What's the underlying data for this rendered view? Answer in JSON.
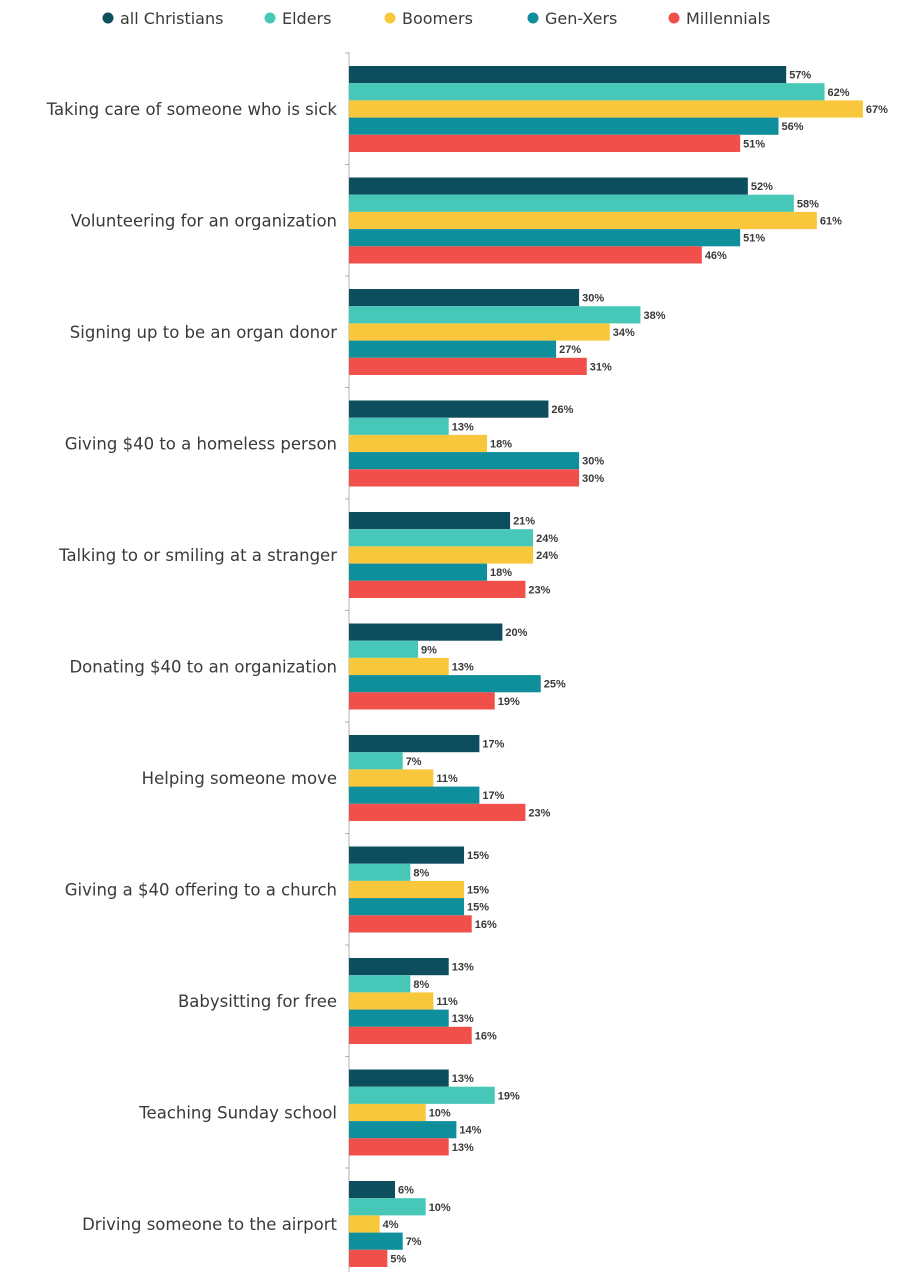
{
  "chart_data": {
    "type": "bar",
    "orientation": "horizontal",
    "categories": [
      "Taking care of someone who is sick",
      "Volunteering for an organization",
      "Signing up to be an organ donor",
      "Giving $40 to a homeless person",
      "Talking to or smiling at a stranger",
      "Donating $40 to an organization",
      "Helping someone move",
      "Giving a $40 offering to a church",
      "Babysitting for free",
      "Teaching Sunday school",
      "Driving someone to the airport"
    ],
    "series": [
      {
        "name": "all Christians",
        "color": "#0c4d5e",
        "values": [
          57,
          52,
          30,
          26,
          21,
          20,
          17,
          15,
          13,
          13,
          6
        ]
      },
      {
        "name": "Elders",
        "color": "#47c7b8",
        "values": [
          62,
          58,
          38,
          13,
          24,
          9,
          7,
          8,
          8,
          19,
          10
        ]
      },
      {
        "name": "Boomers",
        "color": "#f8c73b",
        "values": [
          67,
          61,
          34,
          18,
          24,
          13,
          11,
          15,
          11,
          10,
          4
        ]
      },
      {
        "name": "Gen-Xers",
        "color": "#0e8f9b",
        "values": [
          56,
          51,
          27,
          30,
          18,
          25,
          17,
          15,
          13,
          14,
          7
        ]
      },
      {
        "name": "Millennials",
        "color": "#f04f4a",
        "values": [
          51,
          46,
          31,
          30,
          23,
          19,
          23,
          16,
          16,
          13,
          5
        ]
      }
    ],
    "value_suffix": "%",
    "legend_position": "top",
    "grid": false,
    "xlim": [
      0,
      70
    ]
  }
}
